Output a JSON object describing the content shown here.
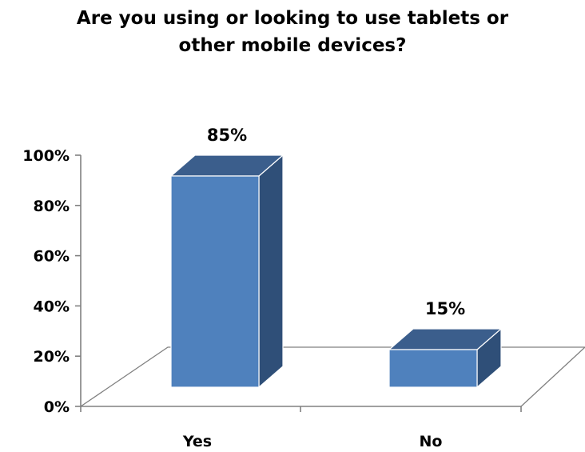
{
  "chart_data": {
    "type": "bar",
    "title": "Are you using or looking to use tablets or other mobile devices?",
    "xlabel": "",
    "ylabel": "",
    "categories": [
      "Yes",
      "No"
    ],
    "values": [
      85,
      15
    ],
    "data_labels": [
      "85%",
      "15%"
    ],
    "ylim": [
      0,
      100
    ],
    "yticks": [
      0,
      20,
      40,
      60,
      80,
      100
    ],
    "ytick_labels": [
      "0%",
      "20%",
      "40%",
      "60%",
      "80%",
      "100%"
    ],
    "style": "3d-column",
    "grid": false,
    "legend": "none",
    "colors": {
      "bar_front": "#4F81BD",
      "bar_top": "#3B5E8C",
      "bar_side": "#2F4F78",
      "bar_edge": "#FFFFFF",
      "floor_line": "#808080",
      "axis_line": "#808080"
    }
  }
}
